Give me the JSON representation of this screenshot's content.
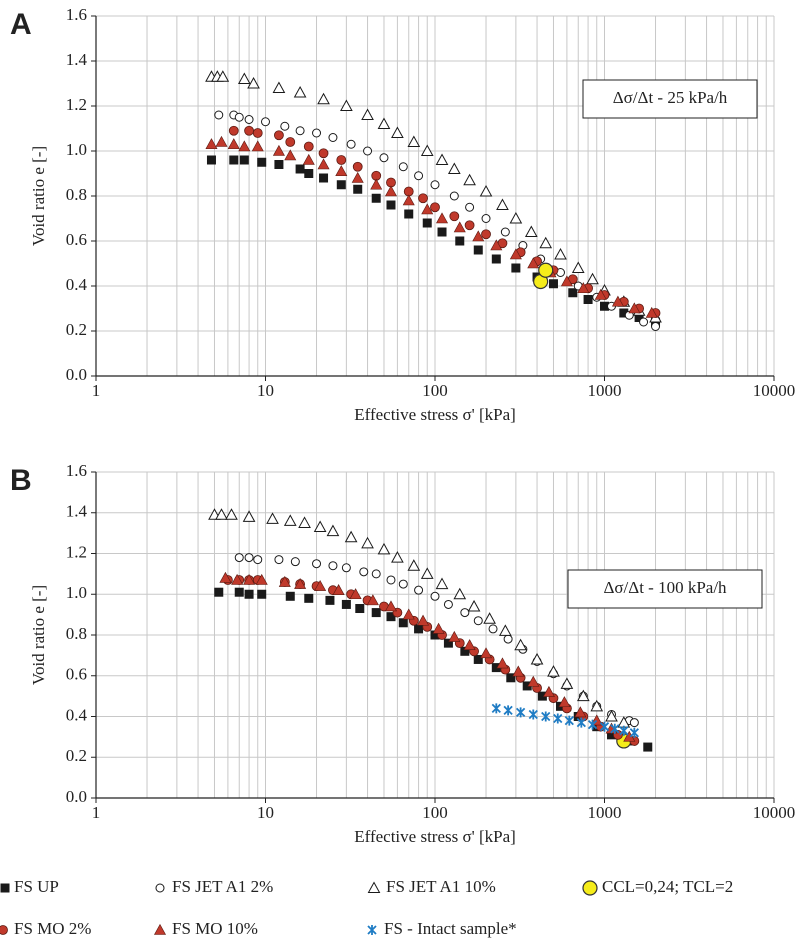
{
  "chart_data": [
    {
      "type": "scatter",
      "panel_label": "A",
      "annotation": "Δσ/Δt - 25 kPa/h",
      "xlabel": "Effective stress σ' [kPa]",
      "ylabel": "Void ratio e [-]",
      "log_x": true,
      "grid": true,
      "xlim": [
        1,
        10000
      ],
      "xticks": [
        1,
        10,
        100,
        1000,
        10000
      ],
      "ylim": [
        0,
        1.6
      ],
      "yticks": [
        {
          "value": 0,
          "label": "0.0"
        },
        0.2,
        0.4,
        0.6,
        0.8,
        {
          "value": 1,
          "label": "1.0"
        },
        1.2,
        1.4,
        1.6
      ],
      "series": [
        {
          "marker": "square",
          "color": "#1a1a1a",
          "x": [
            4.8,
            6.5,
            7.5,
            9.5,
            12,
            16,
            18,
            22,
            28,
            35,
            45,
            55,
            70,
            90,
            110,
            140,
            180,
            230,
            300,
            400,
            500,
            650,
            800,
            1000,
            1300,
            1600,
            2000
          ],
          "y": [
            0.96,
            0.96,
            0.96,
            0.95,
            0.94,
            0.92,
            0.9,
            0.88,
            0.85,
            0.83,
            0.79,
            0.76,
            0.72,
            0.68,
            0.64,
            0.6,
            0.56,
            0.52,
            0.48,
            0.44,
            0.41,
            0.37,
            0.34,
            0.31,
            0.28,
            0.26,
            0.24
          ]
        },
        {
          "marker": "open-circle",
          "color": "#1a1a1a",
          "x": [
            5.3,
            6.5,
            7,
            8,
            10,
            13,
            16,
            20,
            25,
            32,
            40,
            50,
            65,
            80,
            100,
            130,
            160,
            200,
            260,
            330,
            420,
            550,
            700,
            900,
            1100,
            1400,
            1700,
            2000
          ],
          "y": [
            1.16,
            1.16,
            1.15,
            1.14,
            1.13,
            1.11,
            1.09,
            1.08,
            1.06,
            1.03,
            1,
            0.97,
            0.93,
            0.89,
            0.85,
            0.8,
            0.75,
            0.7,
            0.64,
            0.58,
            0.52,
            0.46,
            0.4,
            0.35,
            0.31,
            0.27,
            0.24,
            0.22
          ]
        },
        {
          "marker": "open-triangle",
          "color": "#1a1a1a",
          "x": [
            4.8,
            5.2,
            5.6,
            7.5,
            8.5,
            12,
            16,
            22,
            30,
            40,
            50,
            60,
            75,
            90,
            110,
            130,
            160,
            200,
            250,
            300,
            370,
            450,
            550,
            700,
            850,
            1000,
            1300,
            1600,
            2000
          ],
          "y": [
            1.33,
            1.33,
            1.33,
            1.32,
            1.3,
            1.28,
            1.26,
            1.23,
            1.2,
            1.16,
            1.12,
            1.08,
            1.04,
            1,
            0.96,
            0.92,
            0.87,
            0.82,
            0.76,
            0.7,
            0.64,
            0.59,
            0.54,
            0.48,
            0.43,
            0.38,
            0.33,
            0.29,
            0.26
          ]
        },
        {
          "marker": "circle",
          "color": "#c0392b",
          "x": [
            6.5,
            8,
            9,
            12,
            14,
            18,
            22,
            28,
            35,
            45,
            55,
            70,
            85,
            100,
            130,
            160,
            200,
            250,
            320,
            400,
            500,
            650,
            800,
            1000,
            1300,
            1600,
            2000
          ],
          "y": [
            1.09,
            1.09,
            1.08,
            1.07,
            1.04,
            1.02,
            0.99,
            0.96,
            0.93,
            0.89,
            0.86,
            0.82,
            0.79,
            0.75,
            0.71,
            0.67,
            0.63,
            0.59,
            0.55,
            0.51,
            0.47,
            0.43,
            0.39,
            0.36,
            0.33,
            0.3,
            0.28
          ]
        },
        {
          "marker": "triangle",
          "color": "#c0392b",
          "x": [
            4.8,
            5.5,
            6.5,
            7.5,
            9,
            12,
            14,
            18,
            22,
            28,
            35,
            45,
            55,
            70,
            90,
            110,
            140,
            180,
            230,
            300,
            380,
            480,
            600,
            750,
            950,
            1200,
            1500,
            1900
          ],
          "y": [
            1.03,
            1.04,
            1.03,
            1.02,
            1.02,
            1,
            0.98,
            0.96,
            0.94,
            0.91,
            0.88,
            0.85,
            0.82,
            0.78,
            0.74,
            0.7,
            0.66,
            0.62,
            0.58,
            0.54,
            0.5,
            0.46,
            0.42,
            0.39,
            0.36,
            0.33,
            0.3,
            0.28
          ]
        },
        {
          "marker": "big-circle",
          "color": "#f5ec1a",
          "x": [
            420,
            450
          ],
          "y": [
            0.42,
            0.47
          ]
        }
      ]
    },
    {
      "type": "scatter",
      "panel_label": "B",
      "annotation": "Δσ/Δt - 100 kPa/h",
      "xlabel": "Effective stress σ' [kPa]",
      "ylabel": "Void ratio e [-]",
      "log_x": true,
      "grid": true,
      "xlim": [
        1,
        10000
      ],
      "xticks": [
        1,
        10,
        100,
        1000,
        10000
      ],
      "ylim": [
        0,
        1.6
      ],
      "yticks": [
        {
          "value": 0,
          "label": "0.0"
        },
        0.2,
        0.4,
        0.6,
        0.8,
        {
          "value": 1,
          "label": "1.0"
        },
        1.2,
        1.4,
        1.6
      ],
      "series": [
        {
          "name": "FS UP",
          "marker": "square",
          "color": "#1a1a1a",
          "x": [
            5.3,
            7,
            8,
            9.5,
            14,
            18,
            24,
            30,
            36,
            45,
            55,
            65,
            80,
            100,
            120,
            150,
            180,
            230,
            280,
            350,
            430,
            550,
            700,
            900,
            1100,
            1400,
            1800
          ],
          "y": [
            1.01,
            1.01,
            1,
            1,
            0.99,
            0.98,
            0.97,
            0.95,
            0.93,
            0.91,
            0.89,
            0.86,
            0.83,
            0.8,
            0.76,
            0.72,
            0.68,
            0.64,
            0.59,
            0.55,
            0.5,
            0.45,
            0.4,
            0.35,
            0.31,
            0.28,
            0.25
          ]
        },
        {
          "name": "FS JET A1 2%",
          "marker": "open-circle",
          "color": "#1a1a1a",
          "x": [
            7,
            8,
            9,
            12,
            15,
            20,
            25,
            30,
            38,
            45,
            55,
            65,
            80,
            100,
            120,
            150,
            180,
            220,
            270,
            330,
            400,
            500,
            600,
            750,
            900,
            1100,
            1400,
            1500
          ],
          "y": [
            1.18,
            1.18,
            1.17,
            1.17,
            1.16,
            1.15,
            1.14,
            1.13,
            1.11,
            1.1,
            1.07,
            1.05,
            1.02,
            0.99,
            0.95,
            0.91,
            0.87,
            0.83,
            0.78,
            0.73,
            0.67,
            0.61,
            0.55,
            0.5,
            0.45,
            0.41,
            0.38,
            0.37
          ]
        },
        {
          "name": "FS JET A1 10%",
          "marker": "open-triangle",
          "color": "#1a1a1a",
          "x": [
            5,
            5.5,
            6.3,
            8,
            11,
            14,
            17,
            21,
            25,
            32,
            40,
            50,
            60,
            75,
            90,
            110,
            140,
            170,
            210,
            260,
            320,
            400,
            500,
            600,
            750,
            900,
            1100,
            1300
          ],
          "y": [
            1.39,
            1.39,
            1.39,
            1.38,
            1.37,
            1.36,
            1.35,
            1.33,
            1.31,
            1.28,
            1.25,
            1.22,
            1.18,
            1.14,
            1.1,
            1.05,
            1,
            0.94,
            0.88,
            0.82,
            0.75,
            0.68,
            0.62,
            0.56,
            0.5,
            0.45,
            0.4,
            0.37
          ]
        },
        {
          "name": "CCL=0,24; TCL=2",
          "marker": "big-circle",
          "color": "#f5ec1a",
          "x": [
            1300
          ],
          "y": [
            0.28
          ]
        },
        {
          "name": "FS MO 2%",
          "marker": "circle",
          "color": "#c0392b",
          "x": [
            6,
            7,
            8,
            9,
            13,
            16,
            20,
            25,
            32,
            40,
            50,
            60,
            75,
            90,
            110,
            140,
            170,
            210,
            260,
            320,
            400,
            500,
            600,
            750,
            950,
            1200,
            1500
          ],
          "y": [
            1.07,
            1.07,
            1.07,
            1.07,
            1.06,
            1.05,
            1.04,
            1.02,
            1,
            0.97,
            0.94,
            0.91,
            0.87,
            0.84,
            0.8,
            0.76,
            0.72,
            0.68,
            0.63,
            0.59,
            0.54,
            0.49,
            0.44,
            0.4,
            0.35,
            0.31,
            0.28
          ]
        },
        {
          "name": "FS MO 10%",
          "marker": "triangle",
          "color": "#c0392b",
          "x": [
            5.8,
            6.8,
            8,
            9.5,
            13,
            16,
            21,
            27,
            34,
            43,
            55,
            70,
            85,
            105,
            130,
            160,
            200,
            250,
            310,
            380,
            470,
            580,
            720,
            900,
            1100,
            1400
          ],
          "y": [
            1.08,
            1.07,
            1.07,
            1.07,
            1.06,
            1.05,
            1.04,
            1.02,
            1,
            0.97,
            0.94,
            0.9,
            0.87,
            0.83,
            0.79,
            0.75,
            0.71,
            0.66,
            0.62,
            0.57,
            0.52,
            0.47,
            0.42,
            0.38,
            0.34,
            0.3
          ]
        },
        {
          "name": "FS - Intact sample*",
          "marker": "star",
          "color": "#1f7cc4",
          "x": [
            230,
            270,
            320,
            380,
            450,
            530,
            620,
            730,
            850,
            1000,
            1150,
            1300,
            1500
          ],
          "y": [
            0.44,
            0.43,
            0.42,
            0.41,
            0.4,
            0.39,
            0.38,
            0.37,
            0.36,
            0.35,
            0.34,
            0.33,
            0.32
          ]
        }
      ]
    }
  ]
}
